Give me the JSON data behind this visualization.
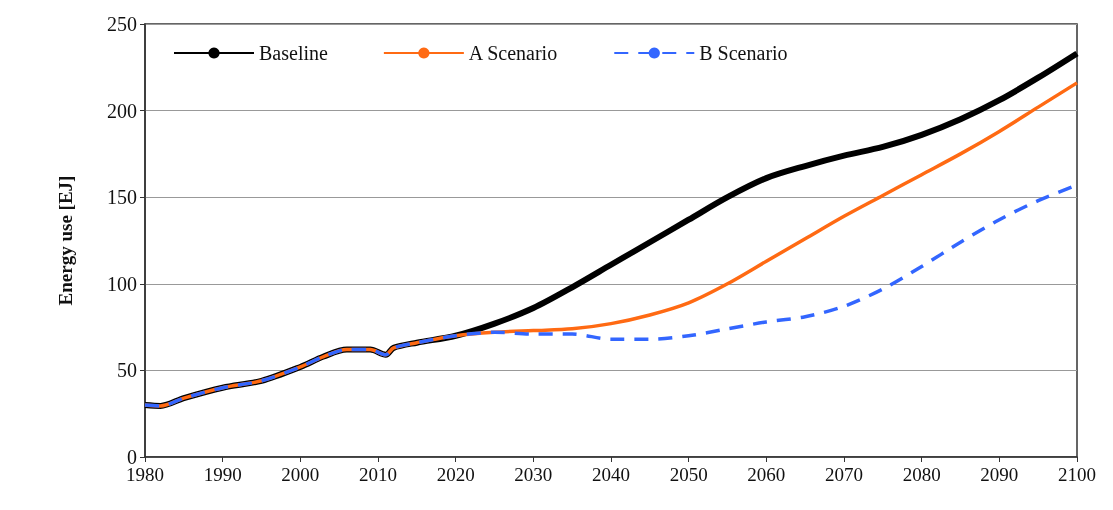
{
  "chart_data": {
    "type": "line",
    "ylabel": "Energy use [EJ]",
    "x": [
      1980,
      1982,
      1985,
      1990,
      1995,
      2000,
      2003,
      2006,
      2009,
      2011,
      2012,
      2015,
      2020,
      2025,
      2030,
      2035,
      2040,
      2045,
      2050,
      2055,
      2060,
      2065,
      2070,
      2075,
      2080,
      2085,
      2090,
      2095,
      2100
    ],
    "series": [
      {
        "name": "Baseline",
        "color": "#000000",
        "line_style": "solid",
        "values": [
          30,
          29.5,
          34,
          40,
          44,
          52,
          58,
          62,
          62,
          59,
          63,
          66,
          70,
          77,
          86,
          98,
          111,
          124,
          137,
          150,
          161,
          168,
          174,
          179,
          186,
          195,
          206,
          219,
          233
        ]
      },
      {
        "name": "A Scenario",
        "color": "#ff6a13",
        "line_style": "solid",
        "values": [
          30,
          29.5,
          34,
          40,
          44,
          52,
          58,
          62,
          62,
          59,
          63,
          66,
          70,
          72,
          73,
          74,
          77,
          82,
          89,
          100,
          113,
          126,
          139,
          151,
          163,
          175,
          188,
          202,
          216
        ]
      },
      {
        "name": "B Scenario",
        "color": "#3366ff",
        "line_style": "dashed",
        "values": [
          30,
          29.5,
          34,
          40,
          44,
          52,
          58,
          62,
          62,
          59,
          63,
          66,
          70,
          72,
          71,
          71,
          68,
          68,
          70,
          74,
          78,
          81,
          87,
          97,
          110,
          124,
          137,
          148,
          157
        ]
      }
    ],
    "xlim": [
      1980,
      2100
    ],
    "xticks": [
      1980,
      1990,
      2000,
      2010,
      2020,
      2030,
      2040,
      2050,
      2060,
      2070,
      2080,
      2090,
      2100
    ],
    "ylim": [
      0,
      250
    ],
    "yticks": [
      0,
      50,
      100,
      150,
      200,
      250
    ],
    "grid": "y",
    "legend": "top left",
    "marker": "none"
  }
}
